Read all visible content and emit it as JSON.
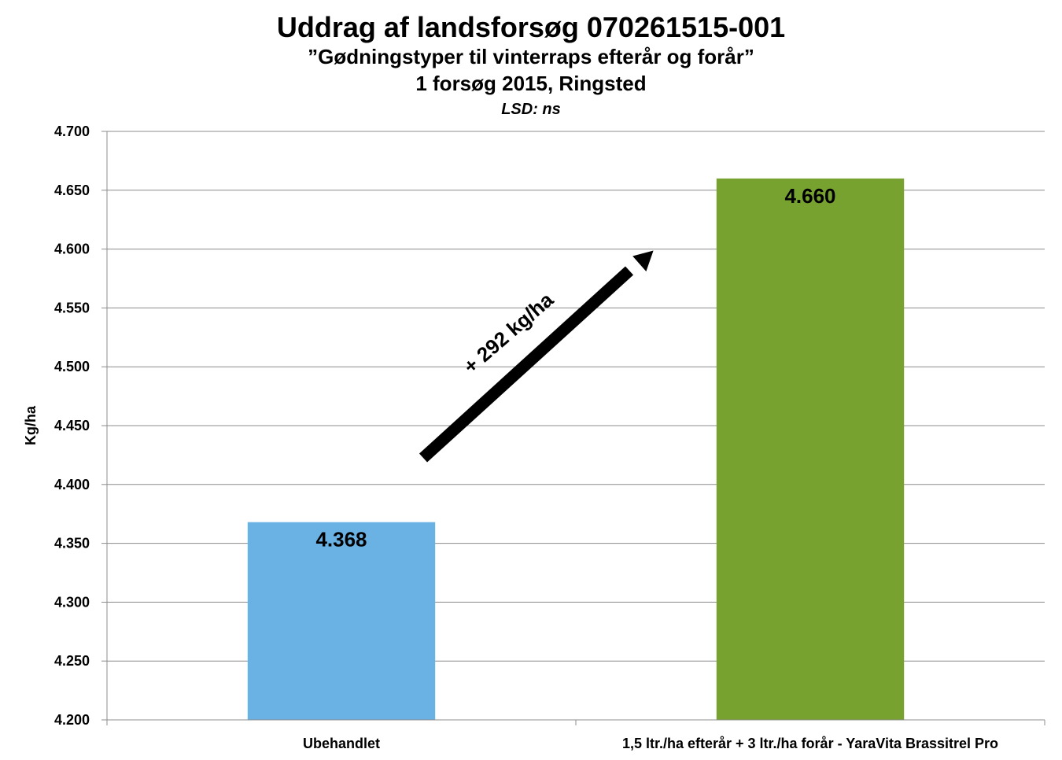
{
  "chart_data": {
    "type": "bar",
    "title": "Uddrag af landsforsøg 070261515-001",
    "subtitle": "”Gødningstyper til vinterraps efterår og forår”",
    "subtitle2": "1 forsøg 2015, Ringsted",
    "subtitle3": "LSD: ns",
    "xlabel": "",
    "ylabel": "Kg/ha",
    "ylim": [
      4200,
      4700
    ],
    "ytick_step": 50,
    "yticks": [
      "4.200",
      "4.250",
      "4.300",
      "4.350",
      "4.400",
      "4.450",
      "4.500",
      "4.550",
      "4.600",
      "4.650",
      "4.700"
    ],
    "categories": [
      "Ubehandlet",
      "1,5 ltr./ha efterår + 3 ltr./ha forår - YaraVita Brassitrel Pro"
    ],
    "values": [
      4368,
      4660
    ],
    "data_labels": [
      "4.368",
      "4.660"
    ],
    "bar_colors": [
      "#6ab2e4",
      "#78a22f"
    ],
    "annotation": "+ 292 kg/ha",
    "grid": true,
    "legend": "none"
  }
}
